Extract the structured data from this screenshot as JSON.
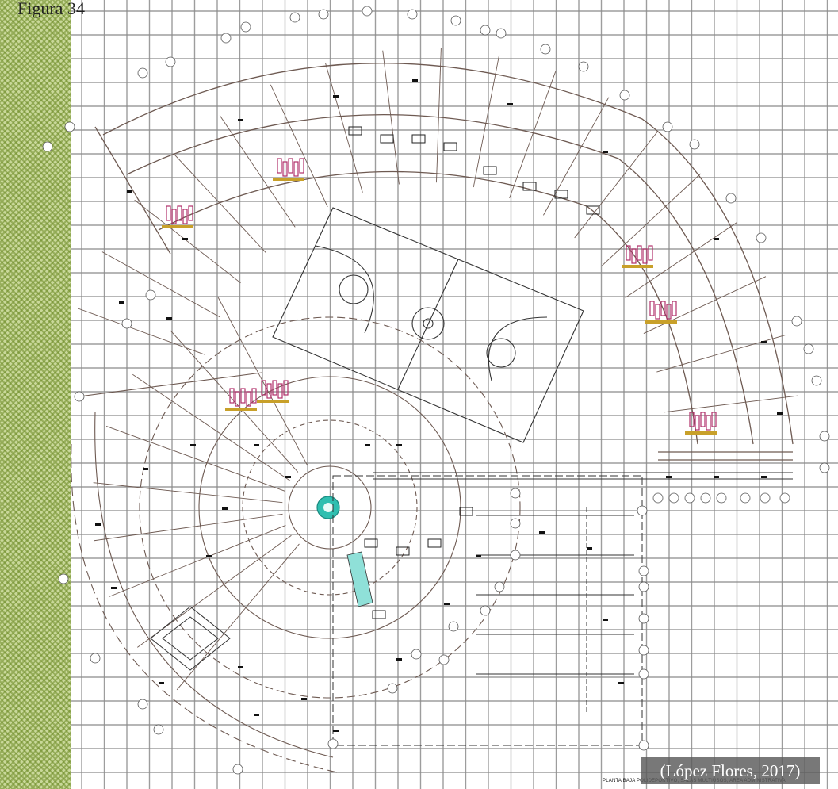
{
  "figure": {
    "label": "Figura 34",
    "source": "(López Flores, 2017)",
    "plan_title": "PLANTA BAJA POLIDEPORTIVO, SALAS MULTIUSOS, AREA ADMINISTRATIVA"
  },
  "colors": {
    "grid": "#8c8c8c",
    "hatch": "#c9d89a",
    "walls": "#6e5a52",
    "furniture": "#b0306a",
    "accent_yellow": "#c8a02a",
    "court": "#333333",
    "center_circle": "#2fbfb0",
    "source_box": "#5a5a5a"
  }
}
